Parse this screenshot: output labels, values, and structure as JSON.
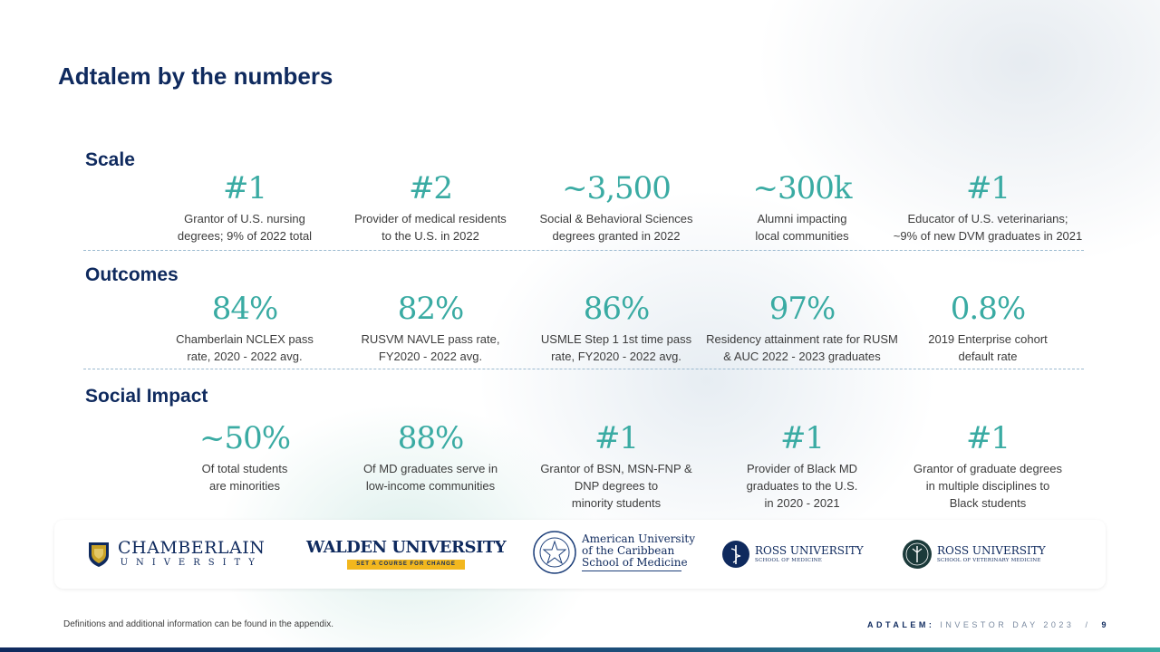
{
  "title": "Adtalem by the numbers",
  "sections": [
    {
      "label": "Scale",
      "stats": [
        {
          "value": "#1",
          "desc": "Grantor of U.S. nursing\ndegrees; 9% of 2022 total"
        },
        {
          "value": "#2",
          "desc": "Provider of medical residents\nto the U.S. in 2022"
        },
        {
          "value": "~3,500",
          "desc": "Social & Behavioral Sciences\ndegrees granted in 2022"
        },
        {
          "value": "~300k",
          "desc": "Alumni impacting\nlocal communities"
        },
        {
          "value": "#1",
          "desc": "Educator of U.S. veterinarians;\n~9% of new DVM graduates in 2021"
        }
      ]
    },
    {
      "label": "Outcomes",
      "stats": [
        {
          "value": "84%",
          "desc": "Chamberlain NCLEX pass\nrate, 2020 - 2022 avg."
        },
        {
          "value": "82%",
          "desc": "RUSVM NAVLE pass rate,\nFY2020 - 2022 avg."
        },
        {
          "value": "86%",
          "desc": "USMLE Step 1 1st time pass\nrate, FY2020 - 2022 avg."
        },
        {
          "value": "97%",
          "desc": "Residency attainment rate for RUSM\n& AUC 2022 - 2023 graduates"
        },
        {
          "value": "0.8%",
          "desc": "2019 Enterprise cohort\ndefault rate"
        }
      ]
    },
    {
      "label": "Social Impact",
      "stats": [
        {
          "value": "~50%",
          "desc": "Of total students\nare minorities"
        },
        {
          "value": "88%",
          "desc": "Of MD graduates serve in\nlow-income communities"
        },
        {
          "value": "#1",
          "desc": "Grantor of BSN, MSN-FNP &\nDNP degrees to\nminority students"
        },
        {
          "value": "#1",
          "desc": "Provider of Black MD\ngraduates to the U.S.\nin 2020 - 2021"
        },
        {
          "value": "#1",
          "desc": "Grantor of graduate degrees\nin multiple disciplines to\nBlack students"
        }
      ]
    }
  ],
  "logos": {
    "chamberlain": {
      "name": "CHAMBERLAIN",
      "sub": "UNIVERSITY"
    },
    "walden": {
      "name": "WALDEN UNIVERSITY",
      "tagline": "SET A COURSE FOR CHANGE"
    },
    "auc": {
      "line1": "American University",
      "line2": "of the Caribbean",
      "line3": "School of Medicine"
    },
    "rusm": {
      "name": "ROSS UNIVERSITY",
      "sub": "SCHOOL OF MEDICINE"
    },
    "rusvm": {
      "name": "ROSS UNIVERSITY",
      "sub": "SCHOOL OF VETERINARY MEDICINE"
    }
  },
  "footer": {
    "note": "Definitions and additional information can be found in the appendix.",
    "brand": "ADTALEM:",
    "event": "INVESTOR DAY 2023",
    "separator": "/",
    "page": "9"
  },
  "colors": {
    "navy": "#0f2a5e",
    "teal": "#3aaba3",
    "gold": "#c9a227"
  }
}
